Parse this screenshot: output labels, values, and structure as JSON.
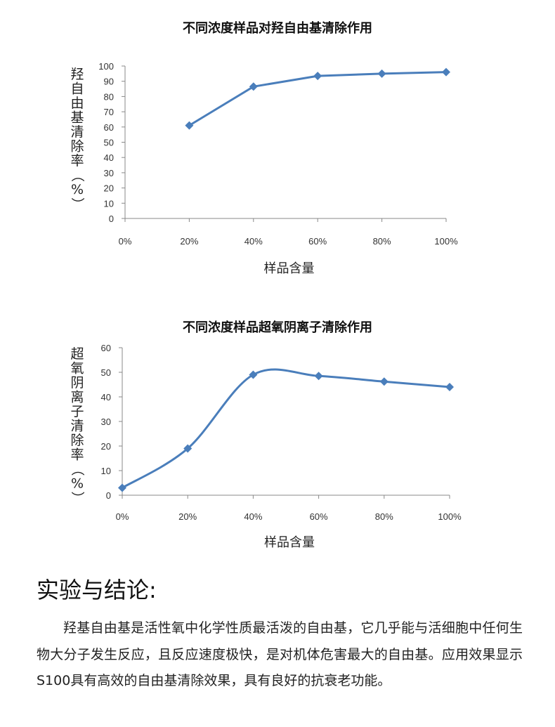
{
  "chart_data": [
    {
      "type": "line",
      "title": "不同浓度样品对羟自由基清除作用",
      "xlabel": "样品含量",
      "ylabel": "羟自由基清除率（%）",
      "categories": [
        "0%",
        "20%",
        "40%",
        "60%",
        "80%",
        "100%"
      ],
      "x": [
        0,
        20,
        40,
        60,
        80,
        100
      ],
      "series": [
        {
          "name": "",
          "values": [
            null,
            61,
            86.5,
            93.5,
            95,
            96
          ]
        }
      ],
      "yticks": [
        "0",
        "10",
        "20",
        "30",
        "40",
        "50",
        "60",
        "70",
        "80",
        "90",
        "100"
      ],
      "ylim": [
        0,
        100
      ],
      "grid": false,
      "smooth": false,
      "color": "#4a7ebb"
    },
    {
      "type": "line",
      "title": "不同浓度样品超氧阴离子清除作用",
      "xlabel": "样品含量",
      "ylabel": "超氧阴离子清除率（%）",
      "categories": [
        "0%",
        "20%",
        "40%",
        "60%",
        "80%",
        "100%"
      ],
      "x": [
        0,
        20,
        40,
        60,
        80,
        100
      ],
      "series": [
        {
          "name": "",
          "values": [
            3,
            19,
            49,
            48.5,
            46.2,
            44
          ]
        }
      ],
      "yticks": [
        "0",
        "10",
        "20",
        "30",
        "40",
        "50",
        "60"
      ],
      "ylim": [
        0,
        60
      ],
      "grid": false,
      "smooth": true,
      "color": "#4a7ebb"
    }
  ],
  "conclusion": {
    "heading": "实验与结论:",
    "body": "羟基自由基是活性氧中化学性质最活泼的自由基，它几乎能与活细胞中任何生物大分子发生反应，且反应速度极快，是对机体危害最大的自由基。应用效果显示S100具有高效的自由基清除效果，具有良好的抗衰老功能。"
  }
}
